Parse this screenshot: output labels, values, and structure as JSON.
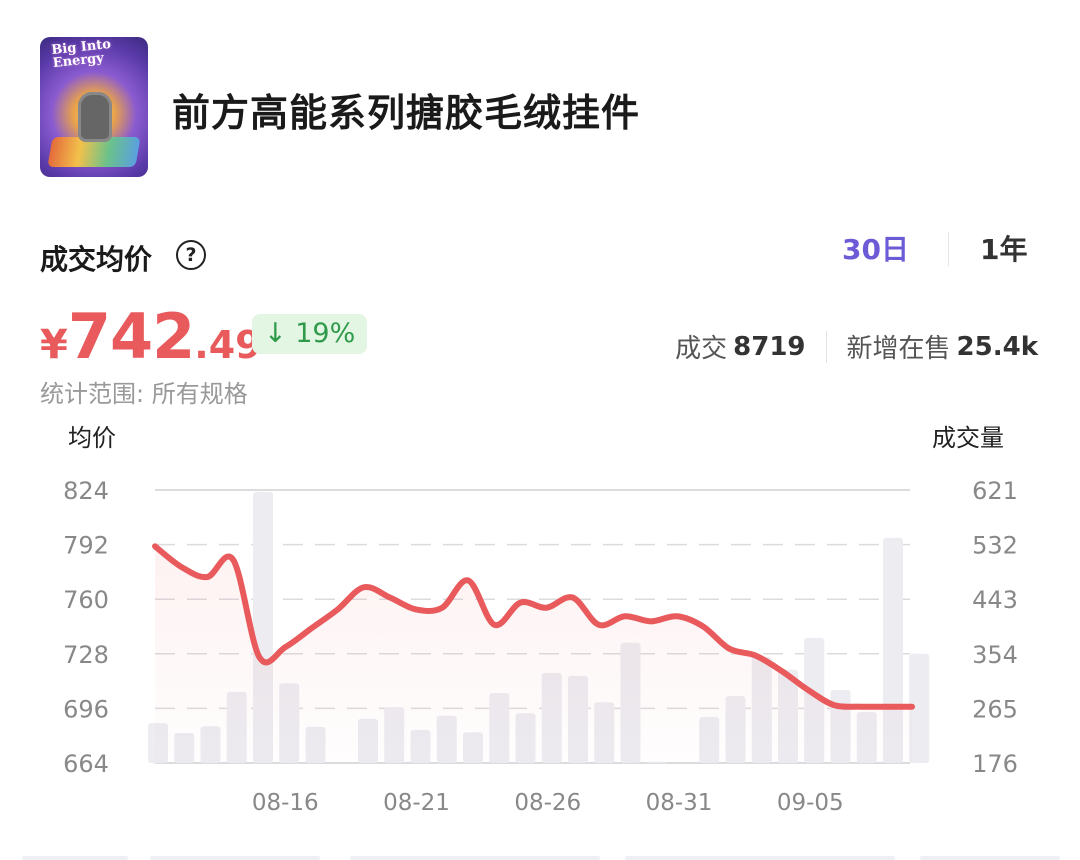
{
  "product": {
    "title": "前方高能系列搪胶毛绒挂件",
    "image_logo_text": "Big Into Energy"
  },
  "header": {
    "metric_label": "成交均价",
    "help_icon": "question-circle-icon",
    "range_tabs": [
      {
        "label": "30日",
        "selected": true
      },
      {
        "label": "1年",
        "selected": false
      }
    ]
  },
  "summary": {
    "currency": "¥",
    "price_int": "742",
    "price_dec": ".49",
    "change_arrow": "↓",
    "change": "19%",
    "deal_label": "成交",
    "deal_value": "8719",
    "new_listing_label": "新增在售",
    "new_listing_value": "25.4k",
    "scope": "统计范围: 所有规格"
  },
  "colors": {
    "price": "#e85a5c",
    "accent": "#6b5bd6",
    "down": "#2e9a4a",
    "bar": "#ececf1"
  },
  "chart_data": {
    "type": "bar+line",
    "y_left_label": "均价",
    "y_right_label": "成交量",
    "y_left_ticks": [
      824,
      792,
      760,
      728,
      696,
      664
    ],
    "y_right_ticks": [
      621,
      532,
      443,
      354,
      265,
      176
    ],
    "ylim_left": [
      664,
      824
    ],
    "ylim_right": [
      176,
      621
    ],
    "x_tick_labels": [
      "08-16",
      "08-21",
      "08-26",
      "08-31",
      "09-05"
    ],
    "categories": [
      "08-11",
      "08-12",
      "08-13",
      "08-14",
      "08-15",
      "08-16",
      "08-17",
      "08-18",
      "08-19",
      "08-20",
      "08-21",
      "08-22",
      "08-23",
      "08-24",
      "08-25",
      "08-26",
      "08-27",
      "08-28",
      "08-29",
      "08-30",
      "08-31",
      "09-01",
      "09-02",
      "09-03",
      "09-04",
      "09-05",
      "09-06",
      "09-07",
      "09-08",
      "09-09"
    ],
    "grid": true,
    "series": [
      {
        "kind": "bar",
        "axis": "right",
        "values": [
          241,
          225,
          236,
          292,
          618,
          306,
          235,
          null,
          248,
          267,
          230,
          253,
          226,
          290,
          257,
          323,
          318,
          275,
          372,
          178,
          null,
          251,
          285,
          349,
          328,
          380,
          295,
          259,
          543,
          354
        ]
      },
      {
        "kind": "line",
        "axis": "left",
        "values": [
          791,
          779,
          773,
          783,
          726,
          732,
          743,
          754,
          767,
          761,
          754,
          755,
          771,
          745,
          758,
          755,
          761,
          745,
          750,
          747,
          750,
          744,
          731,
          727,
          718,
          707,
          698,
          697,
          697,
          697
        ]
      }
    ]
  }
}
